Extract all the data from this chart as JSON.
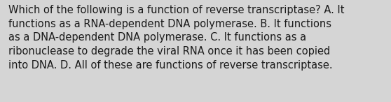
{
  "lines": [
    "Which of the following is a function of reverse transcriptase? A. It",
    "functions as a RNA-dependent DNA polymerase. B. It functions",
    "as a DNA-dependent DNA polymerase. C. It functions as a",
    "ribonuclease to degrade the viral RNA once it has been copied",
    "into DNA. D. All of these are functions of reverse transcriptase."
  ],
  "background_color": "#d5d5d5",
  "text_color": "#1a1a1a",
  "font_size": 10.5,
  "fig_width": 5.58,
  "fig_height": 1.46,
  "dpi": 100
}
